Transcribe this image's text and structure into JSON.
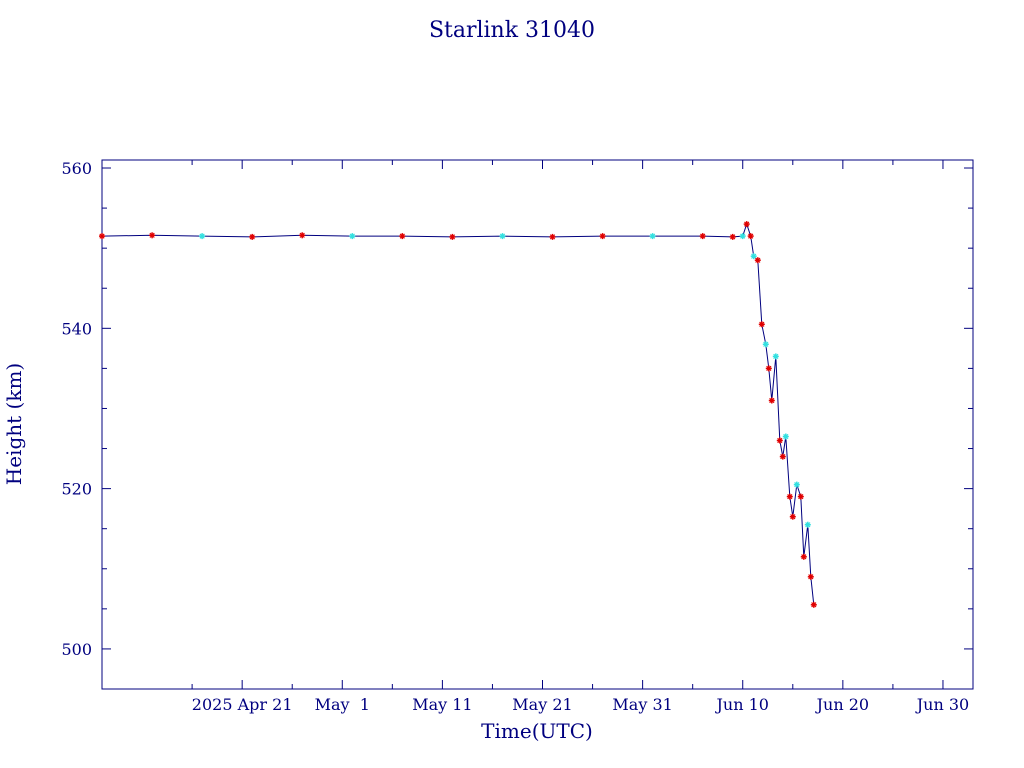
{
  "chart_data": {
    "type": "line",
    "title": "Starlink 31040",
    "xlabel": "Time(UTC)",
    "ylabel": "Height (km)",
    "xlim": [
      "2025-04-07",
      "2025-07-03"
    ],
    "ylim": [
      495,
      561
    ],
    "grid": false,
    "x_ticks": [
      {
        "date": "2025-04-21",
        "label": "2025 Apr 21"
      },
      {
        "date": "2025-05-01",
        "label": "May  1"
      },
      {
        "date": "2025-05-11",
        "label": "May 11"
      },
      {
        "date": "2025-05-21",
        "label": "May 21"
      },
      {
        "date": "2025-05-31",
        "label": "May 31"
      },
      {
        "date": "2025-06-10",
        "label": "Jun 10"
      },
      {
        "date": "2025-06-20",
        "label": "Jun 20"
      },
      {
        "date": "2025-06-30",
        "label": "Jun 30"
      }
    ],
    "y_ticks": [
      500,
      520,
      540,
      560
    ],
    "colors": {
      "axes": "#00007f",
      "line": "#00007f",
      "marker_primary": "#e00000",
      "marker_secondary": "#33e0e0"
    },
    "series": [
      {
        "x": [
          "2025-04-07",
          "2025-04-12",
          "2025-04-17",
          "2025-04-22",
          "2025-04-27",
          "2025-05-02",
          "2025-05-07",
          "2025-05-12",
          "2025-05-17",
          "2025-05-22",
          "2025-05-27",
          "2025-06-01",
          "2025-06-06",
          "2025-06-09",
          "2025-06-10",
          "2025-06-10.4",
          "2025-06-10.8",
          "2025-06-11.1",
          "2025-06-11.5",
          "2025-06-11.9",
          "2025-06-12.3",
          "2025-06-12.6",
          "2025-06-12.9",
          "2025-06-13.3",
          "2025-06-13.7",
          "2025-06-14.0",
          "2025-06-14.3",
          "2025-06-14.7",
          "2025-06-15.0",
          "2025-06-15.4",
          "2025-06-15.8",
          "2025-06-16.1",
          "2025-06-16.5",
          "2025-06-16.8",
          "2025-06-17.1"
        ],
        "values": [
          551.5,
          551.6,
          551.5,
          551.4,
          551.6,
          551.5,
          551.5,
          551.4,
          551.5,
          551.4,
          551.5,
          551.5,
          551.5,
          551.4,
          551.5,
          553.0,
          551.5,
          549.0,
          548.5,
          540.5,
          538.0,
          535.0,
          531.0,
          536.5,
          526.0,
          524.0,
          526.5,
          519.0,
          516.5,
          520.5,
          519.0,
          511.5,
          515.5,
          509.0,
          505.5
        ]
      }
    ]
  }
}
